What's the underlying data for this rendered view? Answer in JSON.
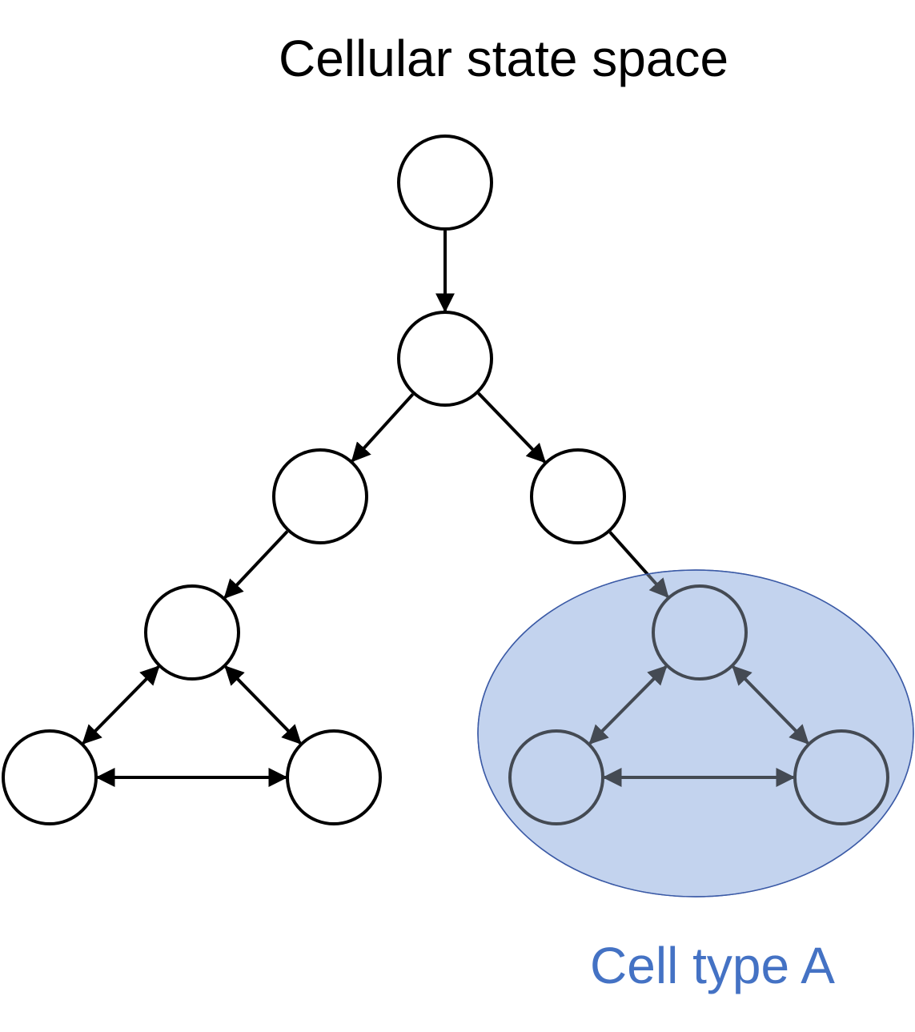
{
  "diagram": {
    "title": "Cellular state space",
    "region": {
      "label": "Cell type A",
      "fill_color": "#c3d3ee",
      "stroke_color": "#3b5aa6",
      "label_color": "#4472c4"
    },
    "nodes": [
      {
        "id": "n1",
        "in_region": false
      },
      {
        "id": "n2",
        "in_region": false
      },
      {
        "id": "n3",
        "in_region": false
      },
      {
        "id": "n4",
        "in_region": false
      },
      {
        "id": "n5",
        "in_region": false
      },
      {
        "id": "n6",
        "in_region": false
      },
      {
        "id": "n7",
        "in_region": false
      },
      {
        "id": "n8",
        "in_region": true
      },
      {
        "id": "n9",
        "in_region": true
      },
      {
        "id": "n10",
        "in_region": true
      }
    ],
    "edges": [
      {
        "from": "n1",
        "to": "n2",
        "bidirectional": false
      },
      {
        "from": "n2",
        "to": "n3",
        "bidirectional": false
      },
      {
        "from": "n2",
        "to": "n4",
        "bidirectional": false
      },
      {
        "from": "n3",
        "to": "n5",
        "bidirectional": false
      },
      {
        "from": "n4",
        "to": "n8",
        "bidirectional": false
      },
      {
        "from": "n5",
        "to": "n6",
        "bidirectional": true
      },
      {
        "from": "n5",
        "to": "n7",
        "bidirectional": true
      },
      {
        "from": "n6",
        "to": "n7",
        "bidirectional": true
      },
      {
        "from": "n8",
        "to": "n9",
        "bidirectional": true
      },
      {
        "from": "n8",
        "to": "n10",
        "bidirectional": true
      },
      {
        "from": "n9",
        "to": "n10",
        "bidirectional": true
      }
    ]
  }
}
